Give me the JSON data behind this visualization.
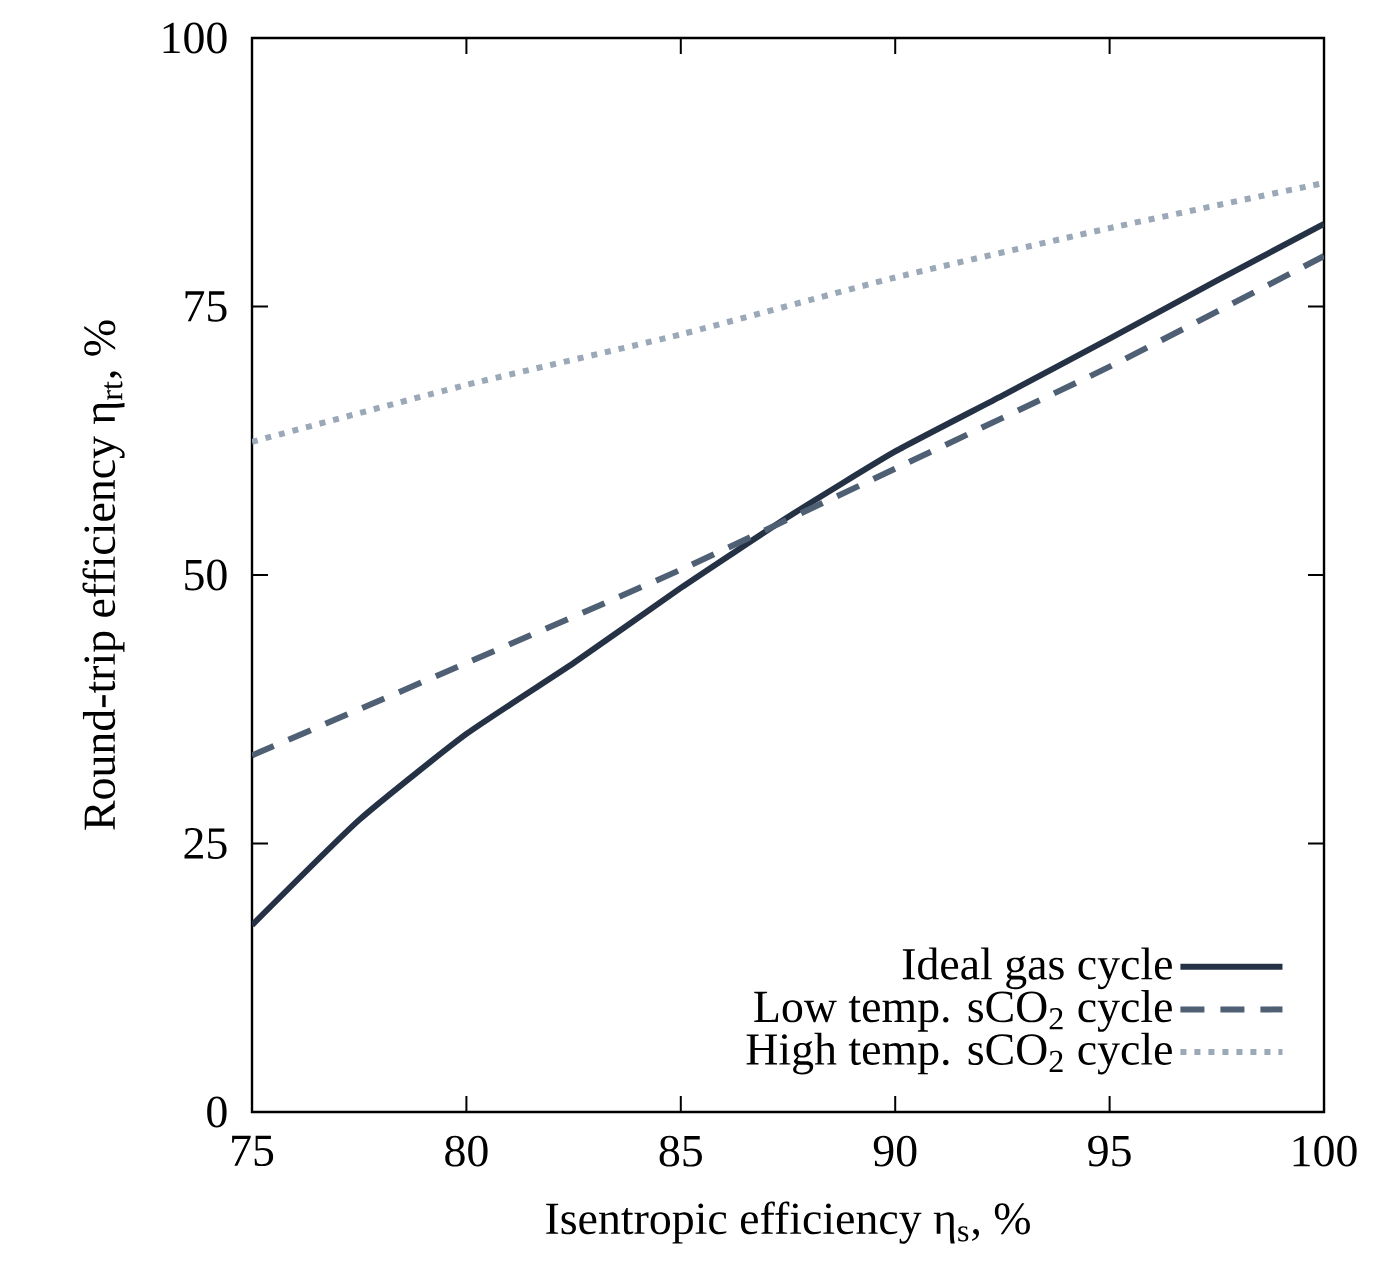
{
  "chart_data": {
    "type": "line",
    "xlabel": "Isentropic efficiency η$_{s}$, %",
    "ylabel": "Round-trip efficiency η$_{rt}$, %",
    "xlim": [
      75,
      100
    ],
    "ylim": [
      0,
      100
    ],
    "xticks": [
      75,
      80,
      85,
      90,
      95,
      100
    ],
    "yticks": [
      0,
      25,
      50,
      75,
      100
    ],
    "legend": "bottom right",
    "x": [
      75,
      77.5,
      80,
      82.5,
      85,
      87.5,
      90,
      92.5,
      95,
      97.5,
      100
    ],
    "series": [
      {
        "name": "Ideal gas cycle",
        "color": "#253245",
        "line_style": "solid",
        "values": [
          17.4,
          27.2,
          35.2,
          41.8,
          48.8,
          55.4,
          61.5,
          66.7,
          72.0,
          77.4,
          82.7
        ]
      },
      {
        "name": "Low temp. sCO$_{2}$ cycle",
        "color": "#4f6075",
        "line_style": "dashed",
        "x": [
          75,
          80,
          85,
          90,
          95,
          100
        ],
        "values": [
          33.2,
          41.8,
          50.5,
          59.9,
          69.4,
          79.7
        ]
      },
      {
        "name": "High temp. sCO$_{2}$ cycle",
        "color": "#9aa8b8",
        "line_style": "dotted",
        "x": [
          75,
          80,
          85,
          90,
          95,
          100
        ],
        "values": [
          62.4,
          67.7,
          72.4,
          77.7,
          82.3,
          86.5
        ]
      }
    ]
  }
}
